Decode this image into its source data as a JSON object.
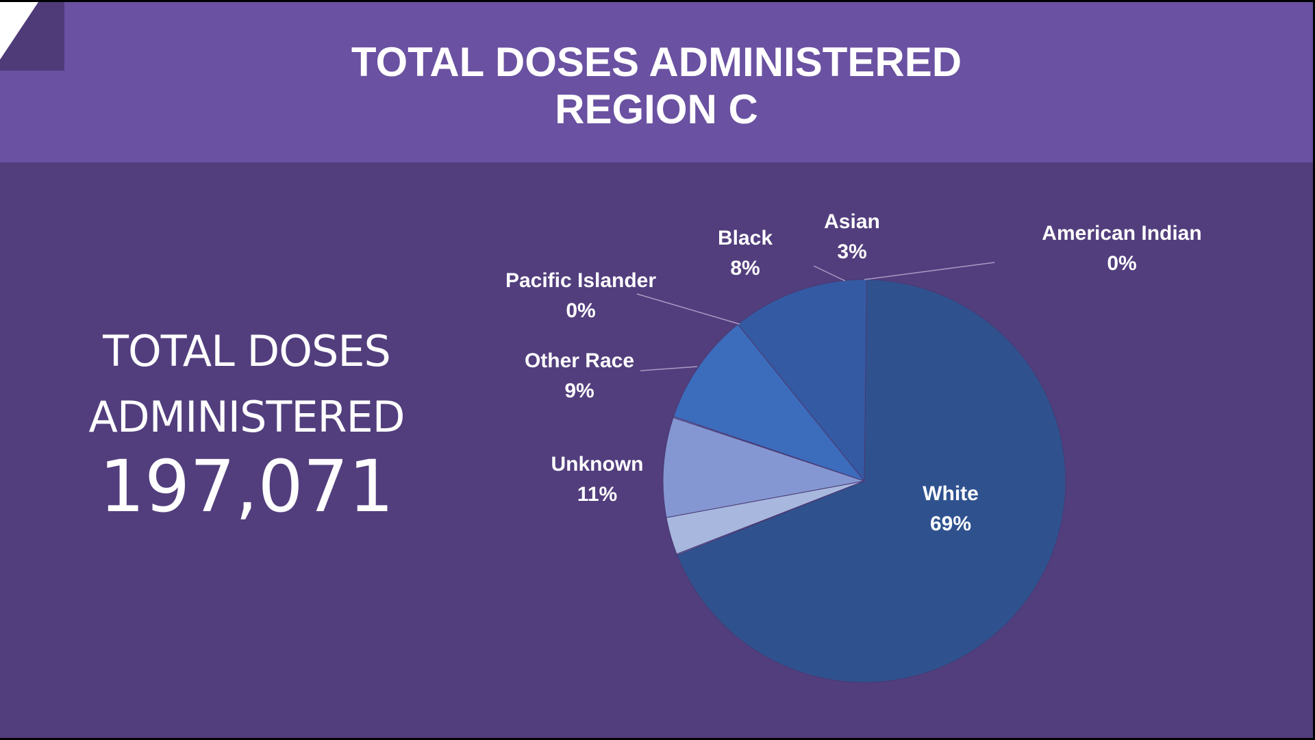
{
  "colors": {
    "header": "#6a51a1",
    "background": "#523e7d",
    "text": "#ffffff"
  },
  "header": {
    "title_line1": "TOTAL DOSES ADMINISTERED",
    "title_line2": "REGION C"
  },
  "summary": {
    "label_line1": "TOTAL DOSES",
    "label_line2": "ADMINISTERED",
    "value": "197,071"
  },
  "chart_data": {
    "type": "pie",
    "slices": [
      {
        "label": "White",
        "value": 69,
        "display": "69%",
        "color": "#2f528f"
      },
      {
        "label": "American Indian",
        "value": 0,
        "display": "0%",
        "color": "#5b7fc4"
      },
      {
        "label": "Asian",
        "value": 3,
        "display": "3%",
        "color": "#a7b7dd"
      },
      {
        "label": "Black",
        "value": 8,
        "display": "8%",
        "color": "#8497d2"
      },
      {
        "label": "Pacific Islander",
        "value": 0,
        "display": "0%",
        "color": "#6f88cb"
      },
      {
        "label": "Other Race",
        "value": 9,
        "display": "9%",
        "color": "#3c6cbc"
      },
      {
        "label": "Unknown",
        "value": 11,
        "display": "11%",
        "color": "#345aa3"
      }
    ]
  }
}
